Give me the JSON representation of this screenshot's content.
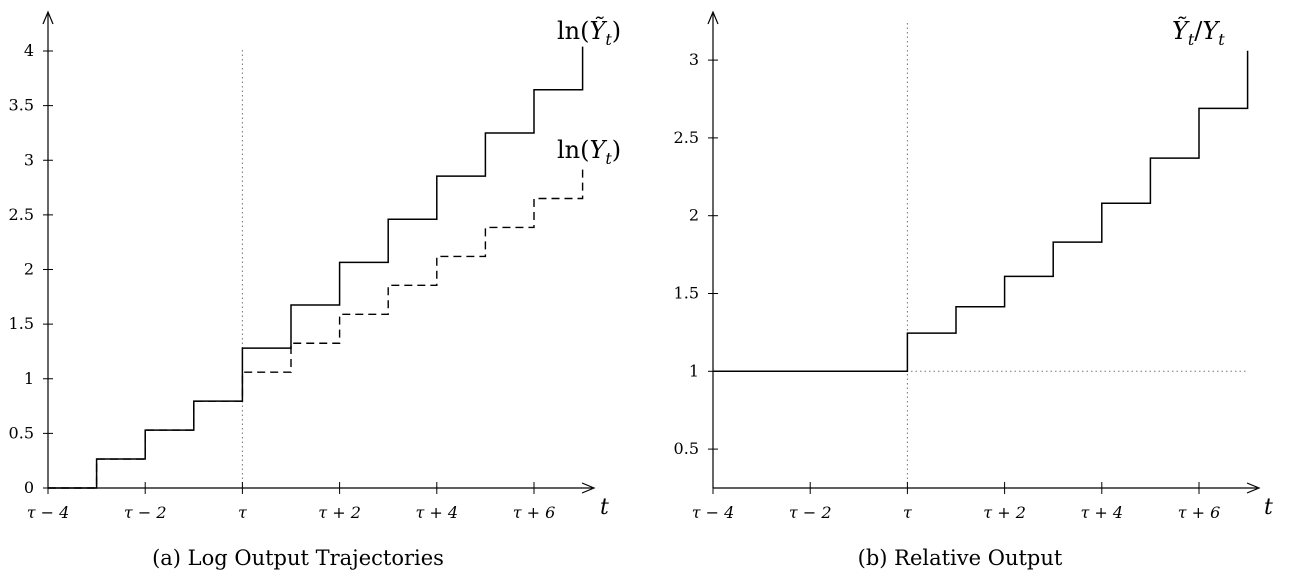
{
  "chart_data": [
    {
      "type": "line",
      "step": "post",
      "caption": "(a) Log Output Trajectories",
      "x_axis_label": "t",
      "x": [
        -4,
        -3,
        -2,
        -1,
        0,
        1,
        2,
        3,
        4,
        5,
        6,
        7
      ],
      "xticks": [
        -4,
        -2,
        0,
        2,
        4,
        6
      ],
      "xtick_labels": [
        "τ − 4",
        "τ − 2",
        "τ",
        "τ + 2",
        "τ + 4",
        "τ + 6"
      ],
      "xlim": [
        -4,
        7
      ],
      "ylim": [
        0,
        4
      ],
      "yticks": [
        0,
        0.5,
        1,
        1.5,
        2,
        2.5,
        3,
        3.5,
        4
      ],
      "ytick_labels": [
        "0",
        "0.5",
        "1",
        "1.5",
        "2",
        "2.5",
        "3",
        "3.5",
        "4"
      ],
      "vline_x": 0,
      "series": [
        {
          "name": "ln(Ỹt)",
          "style": "solid",
          "values": [
            0,
            0.265,
            0.53,
            0.795,
            1.28,
            1.675,
            2.065,
            2.46,
            2.855,
            3.25,
            3.645,
            4.04
          ]
        },
        {
          "name": "ln(Yt)",
          "style": "dashed",
          "values": [
            0,
            0.265,
            0.53,
            0.795,
            1.06,
            1.325,
            1.59,
            1.855,
            2.12,
            2.385,
            2.65,
            2.94
          ]
        }
      ]
    },
    {
      "type": "line",
      "step": "post",
      "caption": "(b) Relative Output",
      "x_axis_label": "t",
      "x": [
        -4,
        -3,
        -2,
        -1,
        0,
        1,
        2,
        3,
        4,
        5,
        6,
        7
      ],
      "xticks": [
        -4,
        -2,
        0,
        2,
        4,
        6
      ],
      "xtick_labels": [
        "τ − 4",
        "τ − 2",
        "τ",
        "τ + 2",
        "τ + 4",
        "τ + 6"
      ],
      "xlim": [
        -4,
        7
      ],
      "ylim": [
        0.25,
        3.25
      ],
      "yticks": [
        0.5,
        1,
        1.5,
        2,
        2.5,
        3
      ],
      "ytick_labels": [
        "0.5",
        "1",
        "1.5",
        "2",
        "2.5",
        "3"
      ],
      "vline_x": 0,
      "hline_y": 1,
      "series": [
        {
          "name": "Ỹt/Yt",
          "style": "solid",
          "values": [
            1,
            1,
            1,
            1,
            1.245,
            1.415,
            1.61,
            1.83,
            2.08,
            2.37,
            2.69,
            3.06
          ]
        }
      ]
    }
  ]
}
